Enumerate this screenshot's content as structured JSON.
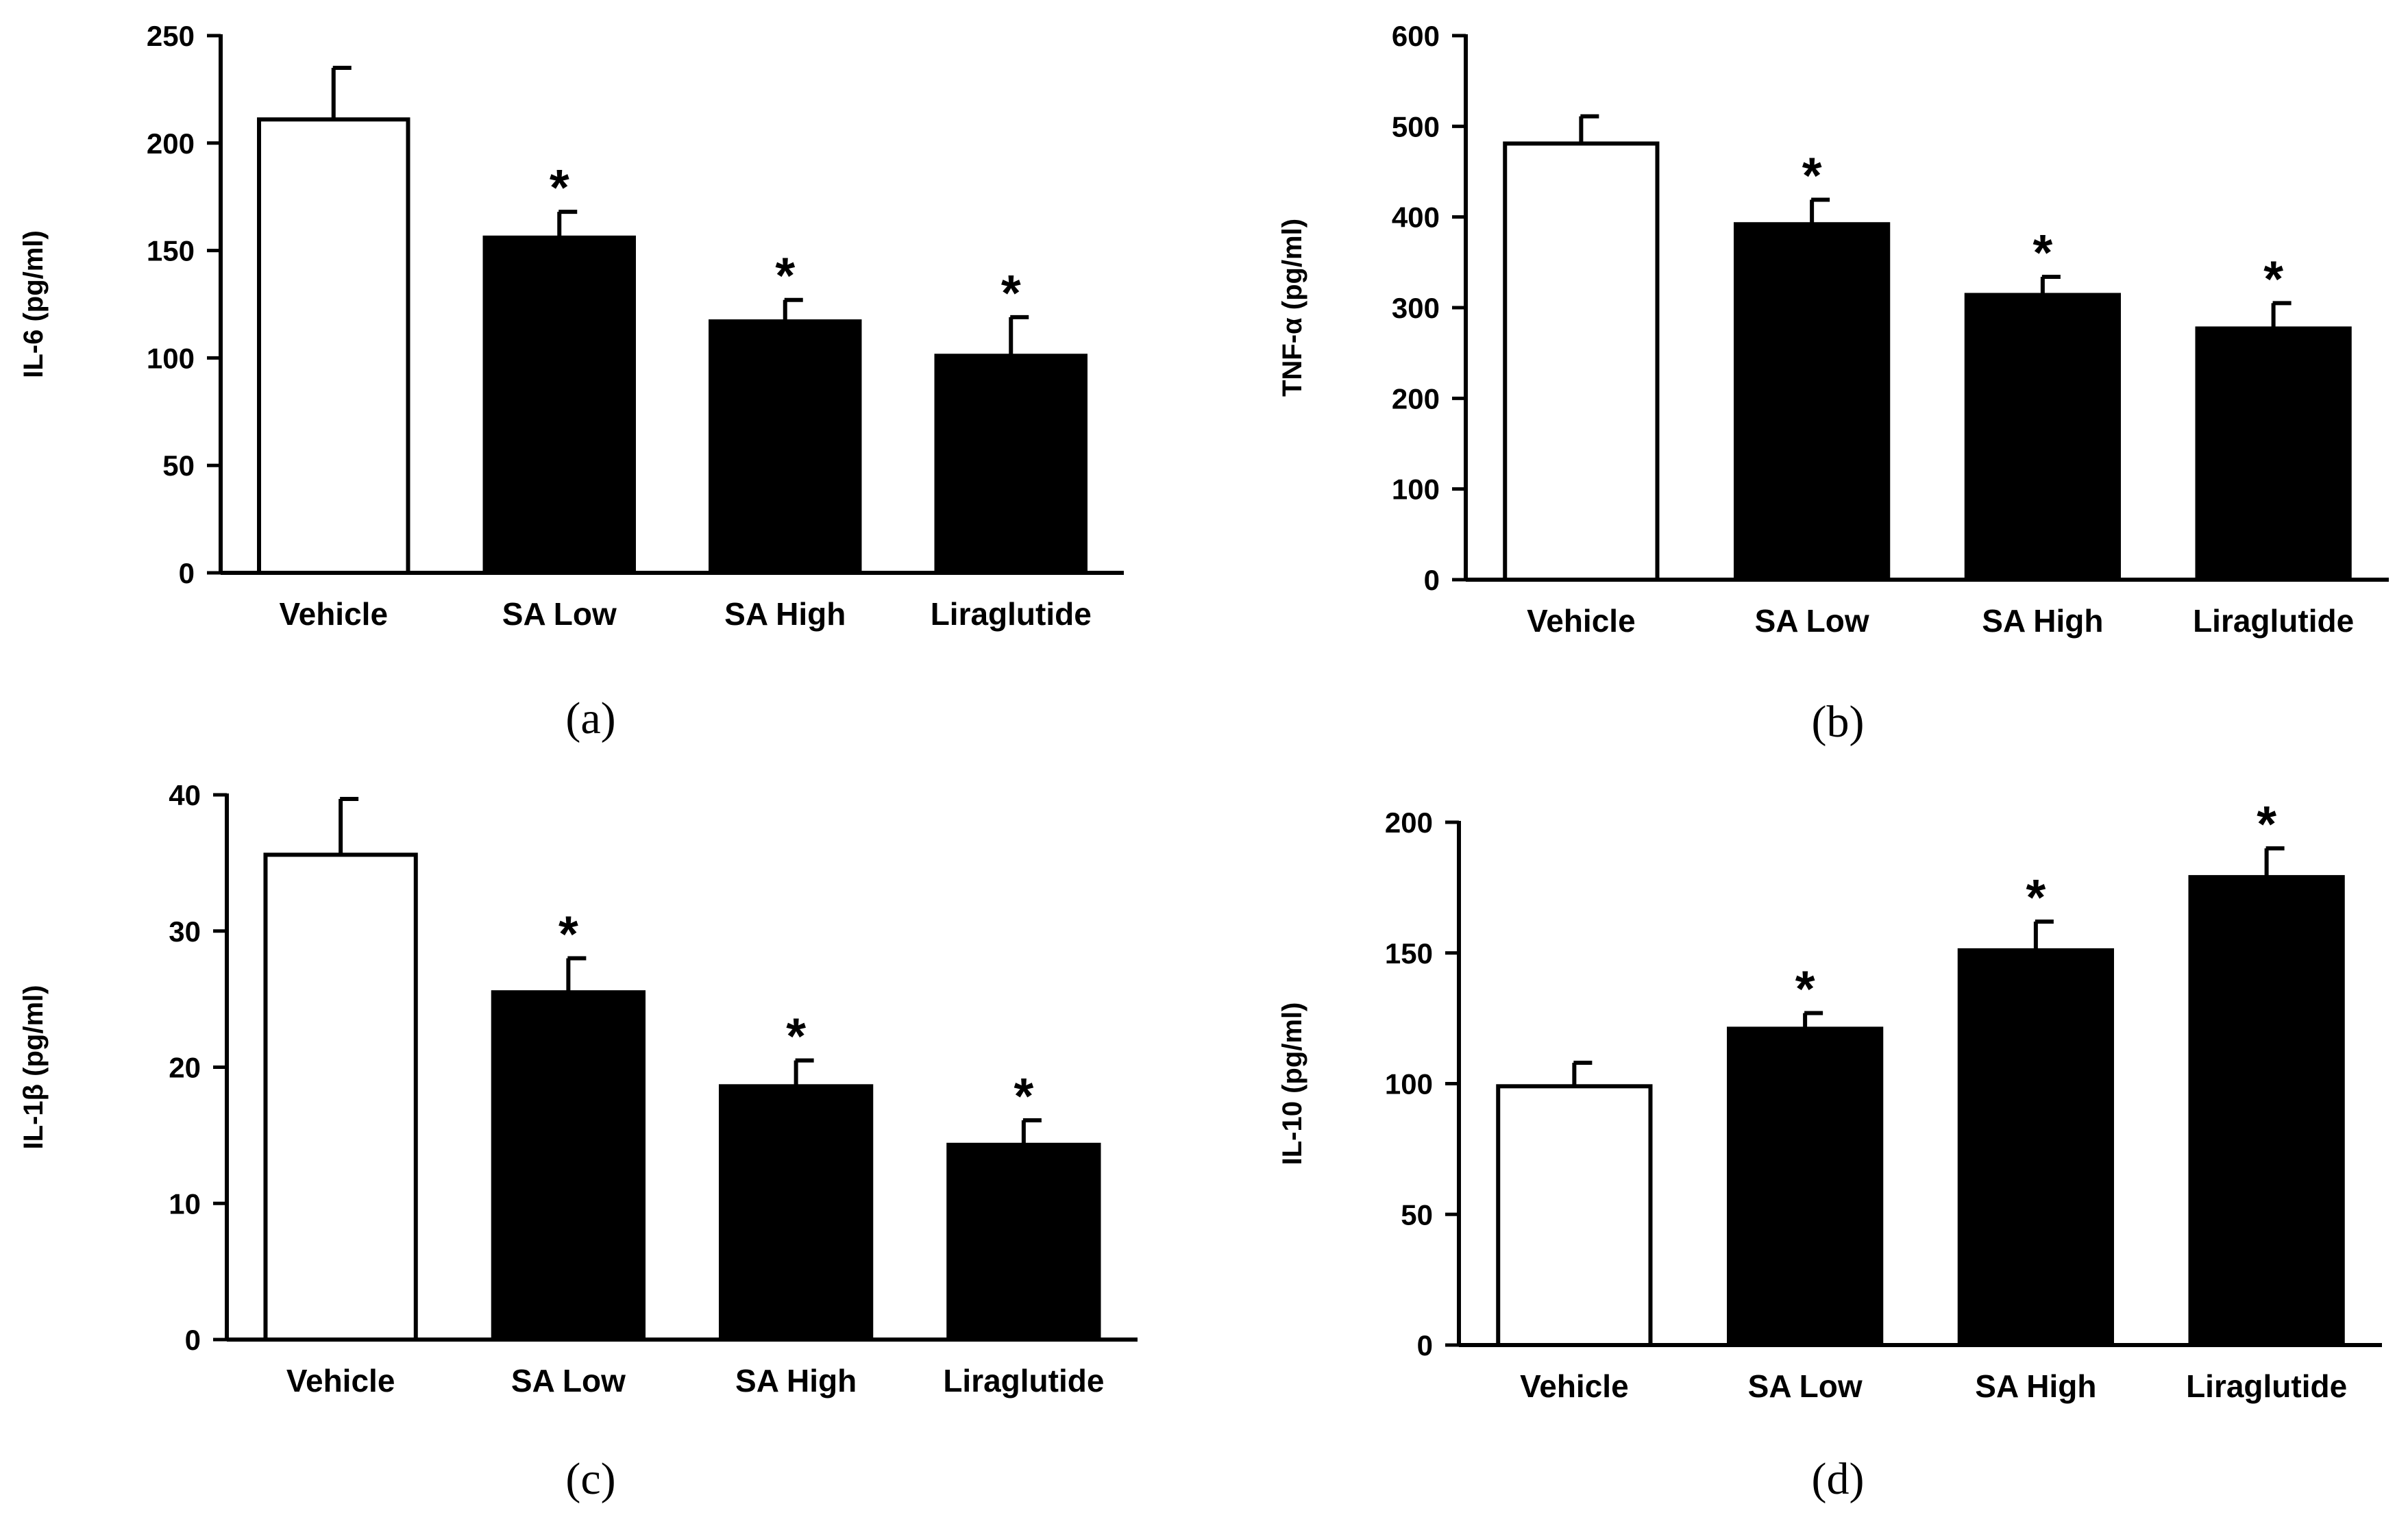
{
  "chart_data": [
    {
      "panel_label": "(a)",
      "type": "bar",
      "ylabel": "IL-6 (pg/ml)",
      "ylim": [
        0,
        250
      ],
      "yticks": [
        0,
        50,
        100,
        150,
        200,
        250
      ],
      "categories": [
        "Vehicle",
        "SA Low",
        "SA High",
        "Liraglutide"
      ],
      "values": [
        211,
        156,
        117,
        101
      ],
      "errors": [
        24,
        12,
        10,
        18
      ],
      "fill": [
        "#ffffff",
        "#000000",
        "#000000",
        "#000000"
      ],
      "significance": [
        "",
        "*",
        "*",
        "*"
      ]
    },
    {
      "panel_label": "(b)",
      "type": "bar",
      "ylabel": "TNF-α (pg/ml)",
      "ylim": [
        0,
        600
      ],
      "yticks": [
        0,
        100,
        200,
        300,
        400,
        500,
        600
      ],
      "categories": [
        "Vehicle",
        "SA Low",
        "SA High",
        "Liraglutide"
      ],
      "values": [
        481,
        392,
        314,
        277
      ],
      "errors": [
        30,
        27,
        20,
        28
      ],
      "fill": [
        "#ffffff",
        "#000000",
        "#000000",
        "#000000"
      ],
      "significance": [
        "",
        "*",
        "*",
        "*"
      ]
    },
    {
      "panel_label": "(c)",
      "type": "bar",
      "ylabel": "IL-1β (pg/ml)",
      "ylim": [
        0,
        40
      ],
      "yticks": [
        0,
        10,
        20,
        30,
        40
      ],
      "categories": [
        "Vehicle",
        "SA Low",
        "SA High",
        "Liraglutide"
      ],
      "values": [
        35.6,
        25.5,
        18.6,
        14.3
      ],
      "errors": [
        4.1,
        2.5,
        1.9,
        1.8
      ],
      "fill": [
        "#ffffff",
        "#000000",
        "#000000",
        "#000000"
      ],
      "significance": [
        "",
        "*",
        "*",
        "*"
      ]
    },
    {
      "panel_label": "(d)",
      "type": "bar",
      "ylabel": "IL-10 (pg/ml)",
      "ylim": [
        0,
        200
      ],
      "yticks": [
        0,
        50,
        100,
        150,
        200
      ],
      "categories": [
        "Vehicle",
        "SA Low",
        "SA High",
        "Liraglutide"
      ],
      "values": [
        99,
        121,
        151,
        179
      ],
      "errors": [
        9,
        6,
        11,
        11
      ],
      "fill": [
        "#ffffff",
        "#000000",
        "#000000",
        "#000000"
      ],
      "significance": [
        "",
        "*",
        "*",
        "*"
      ]
    }
  ]
}
